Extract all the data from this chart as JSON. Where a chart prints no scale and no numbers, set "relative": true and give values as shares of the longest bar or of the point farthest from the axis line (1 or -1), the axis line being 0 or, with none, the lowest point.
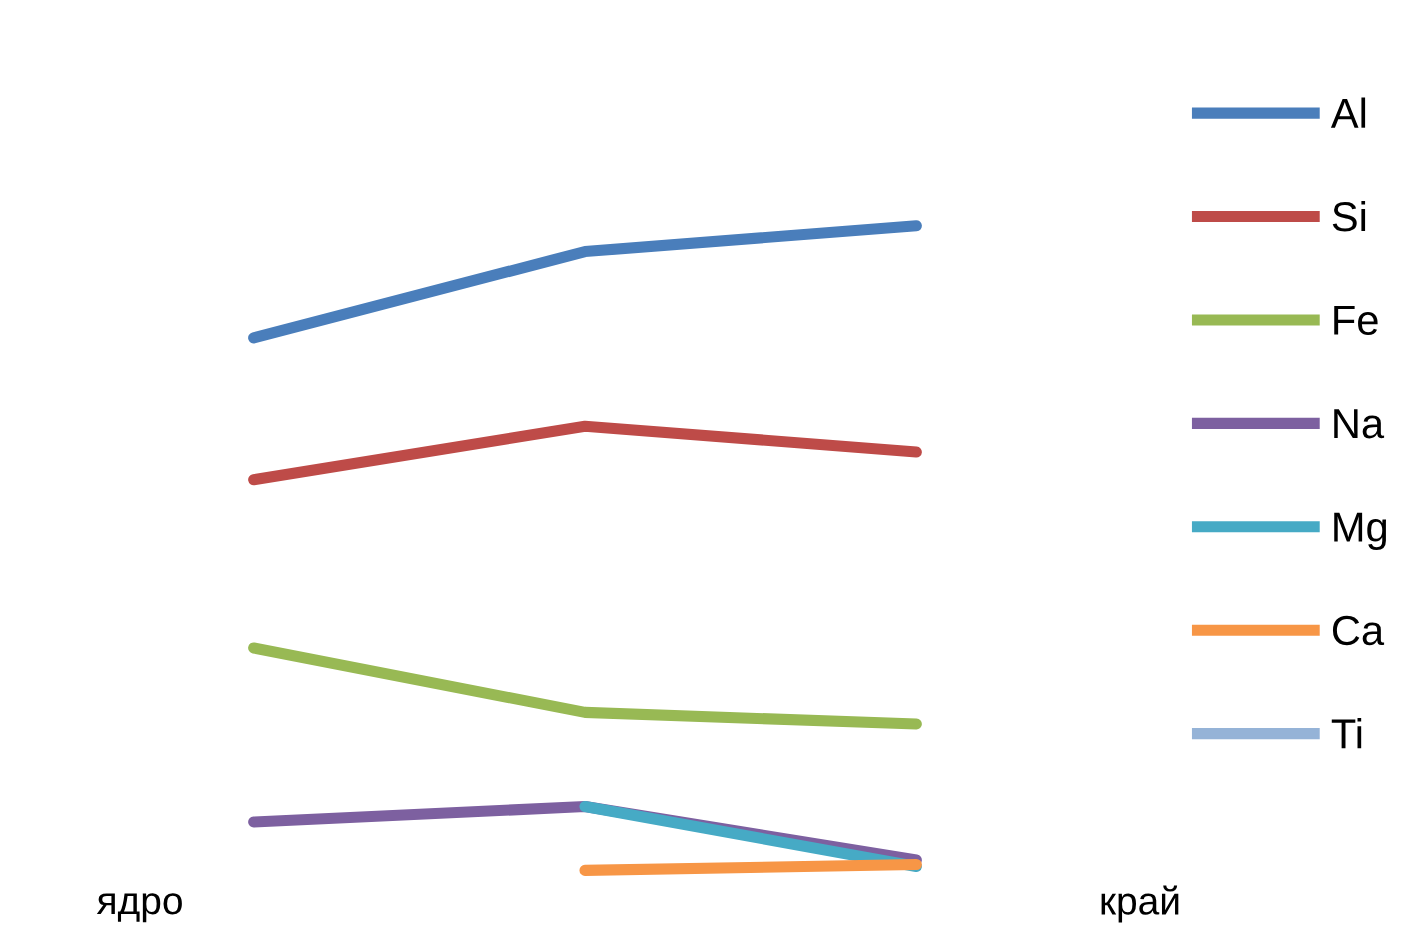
{
  "chart_data": {
    "type": "line",
    "relative": true,
    "categories": [
      null,
      null,
      null
    ],
    "annotations": [
      "ядро",
      "край"
    ],
    "legend": "right",
    "grid": false,
    "marker": "none",
    "line_style": "solid",
    "series": [
      {
        "name": "Al",
        "color": "#4a7ebb",
        "values": [
          0.826,
          0.96,
          1
        ]
      },
      {
        "name": "Si",
        "color": "#be4b48",
        "values": [
          0.606,
          0.689,
          0.649
        ]
      },
      {
        "name": "Fe",
        "color": "#98b954",
        "values": [
          0.345,
          0.245,
          0.227
        ]
      },
      {
        "name": "Na",
        "color": "#7d60a0",
        "values": [
          0.075,
          0.099,
          0.016
        ]
      },
      {
        "name": "Mg",
        "color": "#46aac5",
        "values": [
          null,
          0.099,
          0.006
        ]
      },
      {
        "name": "Ca",
        "color": "#f79646",
        "values": [
          null,
          0,
          0.009
        ]
      },
      {
        "name": "Ti",
        "color": "#95b3d7",
        "values": [
          null,
          null,
          null
        ]
      }
    ]
  }
}
